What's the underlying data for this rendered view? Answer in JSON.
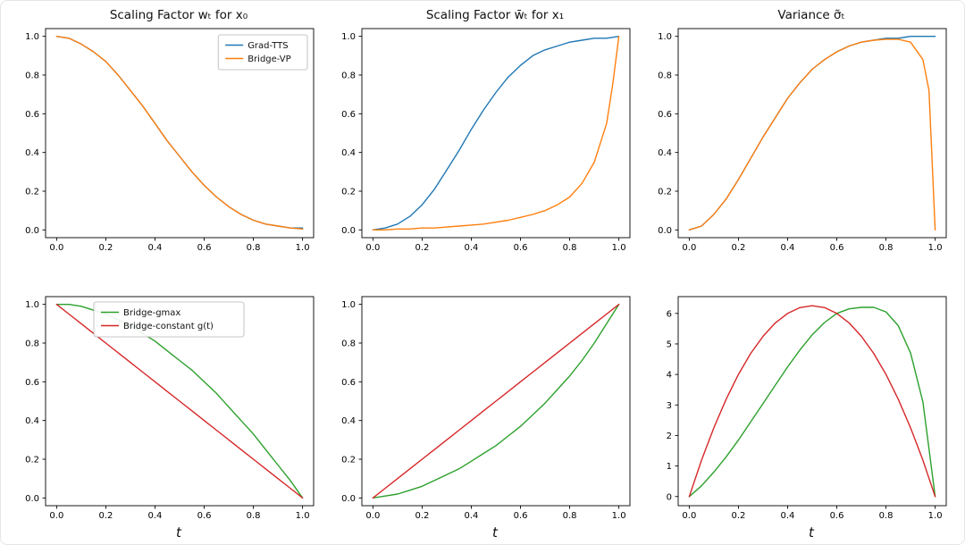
{
  "figure": {
    "background": "#ffffff"
  },
  "colors": {
    "blue": "#1f77b4",
    "orange": "#ff7f0e",
    "green": "#2ca02c",
    "red": "#d62728",
    "axis": "#000000"
  },
  "chart_data": [
    {
      "type": "line",
      "title": "Scaling Factor wₜ for x₀",
      "xlabel": "",
      "xlim": [
        -0.045,
        1.045
      ],
      "ylim": [
        -0.04,
        1.04
      ],
      "xticks": {
        "values": [
          0,
          0.2,
          0.4,
          0.6,
          0.8,
          1.0
        ],
        "labels": [
          "0.0",
          "0.2",
          "0.4",
          "0.6",
          "0.8",
          "1.0"
        ]
      },
      "yticks": {
        "values": [
          0,
          0.2,
          0.4,
          0.6,
          0.8,
          1.0
        ],
        "labels": [
          "0.0",
          "0.2",
          "0.4",
          "0.6",
          "0.8",
          "1.0"
        ]
      },
      "legend": {
        "show": true,
        "loc": "upper-right"
      },
      "series": [
        {
          "name": "Grad-TTS",
          "color": "#1f77b4",
          "x": [
            0,
            0.05,
            0.1,
            0.15,
            0.2,
            0.25,
            0.3,
            0.35,
            0.4,
            0.45,
            0.5,
            0.55,
            0.6,
            0.65,
            0.7,
            0.75,
            0.8,
            0.85,
            0.9,
            0.95,
            1
          ],
          "y": [
            1,
            0.99,
            0.96,
            0.92,
            0.87,
            0.8,
            0.72,
            0.64,
            0.55,
            0.46,
            0.38,
            0.3,
            0.23,
            0.17,
            0.12,
            0.08,
            0.05,
            0.03,
            0.02,
            0.01,
            0.01
          ]
        },
        {
          "name": "Bridge-VP",
          "color": "#ff7f0e",
          "x": [
            0,
            0.05,
            0.1,
            0.15,
            0.2,
            0.25,
            0.3,
            0.35,
            0.4,
            0.45,
            0.5,
            0.55,
            0.6,
            0.65,
            0.7,
            0.75,
            0.8,
            0.85,
            0.9,
            0.95,
            1
          ],
          "y": [
            1,
            0.99,
            0.96,
            0.92,
            0.87,
            0.8,
            0.72,
            0.64,
            0.55,
            0.46,
            0.38,
            0.3,
            0.23,
            0.17,
            0.12,
            0.08,
            0.05,
            0.03,
            0.02,
            0.01,
            0.005
          ]
        }
      ]
    },
    {
      "type": "line",
      "title": "Scaling Factor w̄ₜ for x₁",
      "xlabel": "",
      "xlim": [
        -0.045,
        1.045
      ],
      "ylim": [
        -0.04,
        1.04
      ],
      "xticks": {
        "values": [
          0,
          0.2,
          0.4,
          0.6,
          0.8,
          1.0
        ],
        "labels": [
          "0.0",
          "0.2",
          "0.4",
          "0.6",
          "0.8",
          "1.0"
        ]
      },
      "yticks": {
        "values": [
          0,
          0.2,
          0.4,
          0.6,
          0.8,
          1.0
        ],
        "labels": [
          "0.0",
          "0.2",
          "0.4",
          "0.6",
          "0.8",
          "1.0"
        ]
      },
      "legend": {
        "show": false,
        "loc": "upper-right"
      },
      "series": [
        {
          "name": "Grad-TTS",
          "color": "#1f77b4",
          "x": [
            0,
            0.05,
            0.1,
            0.15,
            0.2,
            0.25,
            0.3,
            0.35,
            0.4,
            0.45,
            0.5,
            0.55,
            0.6,
            0.65,
            0.7,
            0.75,
            0.8,
            0.85,
            0.9,
            0.95,
            1
          ],
          "y": [
            0,
            0.01,
            0.03,
            0.07,
            0.13,
            0.21,
            0.31,
            0.41,
            0.52,
            0.62,
            0.71,
            0.79,
            0.85,
            0.9,
            0.93,
            0.95,
            0.97,
            0.98,
            0.99,
            0.99,
            1
          ]
        },
        {
          "name": "Bridge-VP",
          "color": "#ff7f0e",
          "x": [
            0,
            0.05,
            0.1,
            0.15,
            0.2,
            0.25,
            0.3,
            0.35,
            0.4,
            0.45,
            0.5,
            0.55,
            0.6,
            0.65,
            0.7,
            0.75,
            0.8,
            0.85,
            0.9,
            0.95,
            0.975,
            1
          ],
          "y": [
            0,
            0,
            0.005,
            0.005,
            0.01,
            0.01,
            0.015,
            0.02,
            0.025,
            0.03,
            0.04,
            0.05,
            0.065,
            0.08,
            0.1,
            0.13,
            0.17,
            0.24,
            0.35,
            0.55,
            0.75,
            1
          ]
        }
      ]
    },
    {
      "type": "line",
      "title": "Variance σ̃ₜ",
      "xlabel": "",
      "xlim": [
        -0.045,
        1.045
      ],
      "ylim": [
        -0.04,
        1.04
      ],
      "xticks": {
        "values": [
          0,
          0.2,
          0.4,
          0.6,
          0.8,
          1.0
        ],
        "labels": [
          "0.0",
          "0.2",
          "0.4",
          "0.6",
          "0.8",
          "1.0"
        ]
      },
      "yticks": {
        "values": [
          0,
          0.2,
          0.4,
          0.6,
          0.8,
          1.0
        ],
        "labels": [
          "0.0",
          "0.2",
          "0.4",
          "0.6",
          "0.8",
          "1.0"
        ]
      },
      "legend": {
        "show": false,
        "loc": "upper-right"
      },
      "series": [
        {
          "name": "Grad-TTS",
          "color": "#1f77b4",
          "x": [
            0,
            0.05,
            0.1,
            0.15,
            0.2,
            0.25,
            0.3,
            0.35,
            0.4,
            0.45,
            0.5,
            0.55,
            0.6,
            0.65,
            0.7,
            0.75,
            0.8,
            0.85,
            0.9,
            0.95,
            1
          ],
          "y": [
            0,
            0.02,
            0.08,
            0.16,
            0.26,
            0.37,
            0.48,
            0.58,
            0.68,
            0.76,
            0.83,
            0.88,
            0.92,
            0.95,
            0.97,
            0.98,
            0.99,
            0.99,
            1,
            1,
            1
          ]
        },
        {
          "name": "Bridge-VP",
          "color": "#ff7f0e",
          "x": [
            0,
            0.05,
            0.1,
            0.15,
            0.2,
            0.25,
            0.3,
            0.35,
            0.4,
            0.45,
            0.5,
            0.55,
            0.6,
            0.65,
            0.7,
            0.75,
            0.8,
            0.85,
            0.9,
            0.95,
            0.975,
            1
          ],
          "y": [
            0,
            0.02,
            0.08,
            0.16,
            0.26,
            0.37,
            0.48,
            0.58,
            0.68,
            0.76,
            0.83,
            0.88,
            0.92,
            0.95,
            0.97,
            0.98,
            0.985,
            0.985,
            0.97,
            0.88,
            0.72,
            0
          ]
        }
      ]
    },
    {
      "type": "line",
      "title": "",
      "xlabel": "t",
      "xlim": [
        -0.045,
        1.045
      ],
      "ylim": [
        -0.04,
        1.04
      ],
      "xticks": {
        "values": [
          0,
          0.2,
          0.4,
          0.6,
          0.8,
          1.0
        ],
        "labels": [
          "0.0",
          "0.2",
          "0.4",
          "0.6",
          "0.8",
          "1.0"
        ]
      },
      "yticks": {
        "values": [
          0,
          0.2,
          0.4,
          0.6,
          0.8,
          1.0
        ],
        "labels": [
          "0.0",
          "0.2",
          "0.4",
          "0.6",
          "0.8",
          "1.0"
        ]
      },
      "legend": {
        "show": true,
        "loc": "upper-center"
      },
      "series": [
        {
          "name": "Bridge-gmax",
          "color": "#2ca02c",
          "x": [
            0,
            0.05,
            0.1,
            0.15,
            0.2,
            0.25,
            0.3,
            0.35,
            0.4,
            0.45,
            0.5,
            0.55,
            0.6,
            0.65,
            0.7,
            0.75,
            0.8,
            0.85,
            0.9,
            0.95,
            1
          ],
          "y": [
            1,
            1,
            0.99,
            0.97,
            0.95,
            0.92,
            0.89,
            0.85,
            0.81,
            0.76,
            0.71,
            0.66,
            0.6,
            0.54,
            0.47,
            0.4,
            0.33,
            0.25,
            0.17,
            0.09,
            0
          ]
        },
        {
          "name": "Bridge-constant g(t)",
          "color": "#d62728",
          "x": [
            0,
            0.05,
            0.1,
            0.15,
            0.2,
            0.25,
            0.3,
            0.35,
            0.4,
            0.45,
            0.5,
            0.55,
            0.6,
            0.65,
            0.7,
            0.75,
            0.8,
            0.85,
            0.9,
            0.95,
            1
          ],
          "y": [
            1,
            0.95,
            0.9,
            0.85,
            0.8,
            0.75,
            0.7,
            0.65,
            0.6,
            0.55,
            0.5,
            0.45,
            0.4,
            0.35,
            0.3,
            0.25,
            0.2,
            0.15,
            0.1,
            0.05,
            0
          ]
        }
      ]
    },
    {
      "type": "line",
      "title": "",
      "xlabel": "t",
      "xlim": [
        -0.045,
        1.045
      ],
      "ylim": [
        -0.04,
        1.04
      ],
      "xticks": {
        "values": [
          0,
          0.2,
          0.4,
          0.6,
          0.8,
          1.0
        ],
        "labels": [
          "0.0",
          "0.2",
          "0.4",
          "0.6",
          "0.8",
          "1.0"
        ]
      },
      "yticks": {
        "values": [
          0,
          0.2,
          0.4,
          0.6,
          0.8,
          1.0
        ],
        "labels": [
          "0.0",
          "0.2",
          "0.4",
          "0.6",
          "0.8",
          "1.0"
        ]
      },
      "legend": {
        "show": false,
        "loc": "upper-right"
      },
      "series": [
        {
          "name": "Bridge-gmax",
          "color": "#2ca02c",
          "x": [
            0,
            0.05,
            0.1,
            0.15,
            0.2,
            0.25,
            0.3,
            0.35,
            0.4,
            0.45,
            0.5,
            0.55,
            0.6,
            0.65,
            0.7,
            0.75,
            0.8,
            0.85,
            0.9,
            0.95,
            1
          ],
          "y": [
            0,
            0.01,
            0.02,
            0.04,
            0.06,
            0.09,
            0.12,
            0.15,
            0.19,
            0.23,
            0.27,
            0.32,
            0.37,
            0.43,
            0.49,
            0.56,
            0.63,
            0.71,
            0.8,
            0.9,
            1
          ]
        },
        {
          "name": "Bridge-constant g(t)",
          "color": "#d62728",
          "x": [
            0,
            0.05,
            0.1,
            0.15,
            0.2,
            0.25,
            0.3,
            0.35,
            0.4,
            0.45,
            0.5,
            0.55,
            0.6,
            0.65,
            0.7,
            0.75,
            0.8,
            0.85,
            0.9,
            0.95,
            1
          ],
          "y": [
            0,
            0.05,
            0.1,
            0.15,
            0.2,
            0.25,
            0.3,
            0.35,
            0.4,
            0.45,
            0.5,
            0.55,
            0.6,
            0.65,
            0.7,
            0.75,
            0.8,
            0.85,
            0.9,
            0.95,
            1
          ]
        }
      ]
    },
    {
      "type": "line",
      "title": "",
      "xlabel": "t",
      "xlim": [
        -0.045,
        1.045
      ],
      "ylim": [
        -0.3,
        6.55
      ],
      "xticks": {
        "values": [
          0,
          0.2,
          0.4,
          0.6,
          0.8,
          1.0
        ],
        "labels": [
          "0.0",
          "0.2",
          "0.4",
          "0.6",
          "0.8",
          "1.0"
        ]
      },
      "yticks": {
        "values": [
          0,
          1,
          2,
          3,
          4,
          5,
          6
        ],
        "labels": [
          "0",
          "1",
          "2",
          "3",
          "4",
          "5",
          "6"
        ]
      },
      "legend": {
        "show": false,
        "loc": "upper-right"
      },
      "series": [
        {
          "name": "Bridge-gmax",
          "color": "#2ca02c",
          "x": [
            0,
            0.05,
            0.1,
            0.15,
            0.2,
            0.25,
            0.3,
            0.35,
            0.4,
            0.45,
            0.5,
            0.55,
            0.6,
            0.65,
            0.7,
            0.75,
            0.8,
            0.85,
            0.9,
            0.95,
            1
          ],
          "y": [
            0,
            0.35,
            0.8,
            1.3,
            1.85,
            2.45,
            3.05,
            3.65,
            4.25,
            4.8,
            5.3,
            5.7,
            6,
            6.15,
            6.2,
            6.2,
            6.05,
            5.6,
            4.7,
            3.1,
            0
          ]
        },
        {
          "name": "Bridge-constant g(t)",
          "color": "#d62728",
          "x": [
            0,
            0.05,
            0.1,
            0.15,
            0.2,
            0.25,
            0.3,
            0.35,
            0.4,
            0.45,
            0.5,
            0.55,
            0.6,
            0.65,
            0.7,
            0.75,
            0.8,
            0.85,
            0.9,
            0.95,
            1
          ],
          "y": [
            0,
            1.19,
            2.25,
            3.19,
            4,
            4.69,
            5.25,
            5.69,
            6,
            6.19,
            6.25,
            6.19,
            6,
            5.69,
            5.25,
            4.69,
            4,
            3.19,
            2.25,
            1.19,
            0
          ]
        }
      ]
    }
  ]
}
